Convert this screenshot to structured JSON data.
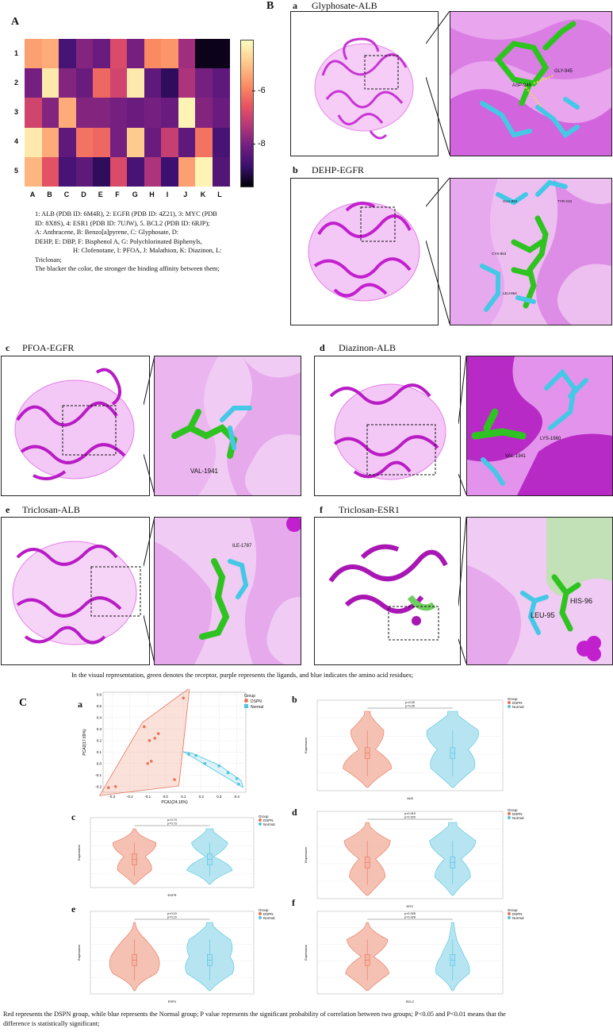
{
  "panel_A": {
    "label": "A",
    "rows": [
      "1",
      "2",
      "3",
      "4",
      "5"
    ],
    "cols": [
      "A",
      "B",
      "C",
      "D",
      "E",
      "F",
      "G",
      "H",
      "I",
      "J",
      "K",
      "L"
    ],
    "colorbar_ticks": [
      "-6",
      "-8"
    ],
    "caption_lines": [
      "1: ALB (PDB ID: 6M4R), 2: EGFR (PDB ID: 4Z21), 3: MYC (PDB",
      "ID: 8X8S), 4: ESR1 (PDB ID: 7UJW), 5. BCL2 (PDB ID: 6RJP);",
      "A: Anthracene, B:          Benzo[a]pyrene, C: Glyphosate, D:",
      "DEHP, E:      DBP, F: Bisphenol A, G: Polychlorinated Biphenyls,",
      "H: Clofenotane, I: PFOA, J: Malathion, K: Diazinon, L:",
      "Triclosan;",
      "The blacker the color, the stronger the binding affinity between them;"
    ]
  },
  "chart_data": [
    {
      "type": "heatmap",
      "rows": [
        "1",
        "2",
        "3",
        "4",
        "5"
      ],
      "cols": [
        "A",
        "B",
        "C",
        "D",
        "E",
        "F",
        "G",
        "H",
        "I",
        "J",
        "K",
        "L"
      ],
      "values": [
        [
          -6.4,
          -6.3,
          -8.4,
          -7.9,
          -8.1,
          -7.2,
          -8.0,
          -6.6,
          -6.5,
          -7.7,
          -8.9,
          -8.9
        ],
        [
          -8.0,
          -5.7,
          -7.9,
          -8.1,
          -6.9,
          -7.3,
          -5.7,
          -8.2,
          -8.6,
          -7.6,
          -8.0,
          -8.2
        ],
        [
          -7.3,
          -7.9,
          -6.3,
          -7.9,
          -7.9,
          -8.0,
          -8.1,
          -8.0,
          -8.1,
          -5.6,
          -7.9,
          -8.1
        ],
        [
          -5.7,
          -6.3,
          -8.2,
          -6.8,
          -6.9,
          -8.0,
          -6.0,
          -8.1,
          -7.4,
          -8.2,
          -6.8,
          -8.4
        ],
        [
          -6.2,
          -7.1,
          -8.4,
          -8.2,
          -8.6,
          -7.2,
          -8.4,
          -7.6,
          -8.5,
          -6.4,
          -5.6,
          -8.3
        ]
      ],
      "colorbar_ticks": [
        -6,
        -8
      ]
    },
    {
      "type": "scatter",
      "xlabel": "PCA1(24.16%)",
      "ylabel": "PCA2(17.69%)",
      "xlim": [
        -0.35,
        0.45
      ],
      "ylim": [
        -0.25,
        0.62
      ],
      "xticks": [
        -0.3,
        -0.2,
        -0.1,
        0.0,
        0.1,
        0.2,
        0.3,
        0.4
      ],
      "yticks": [
        -0.2,
        -0.1,
        0.0,
        0.1,
        0.2,
        0.3,
        0.4,
        0.5,
        0.6
      ],
      "series": [
        {
          "name": "DSPN",
          "color": "#e8735a",
          "x": [
            -0.32,
            -0.28,
            -0.12,
            -0.06,
            -0.09,
            -0.1,
            -0.08,
            -0.04,
            0.05,
            0.1
          ],
          "y": [
            -0.21,
            -0.2,
            0.32,
            0.22,
            0.2,
            0.0,
            0.02,
            0.26,
            -0.14,
            0.57
          ]
        },
        {
          "name": "Normal",
          "color": "#4fc3e0",
          "x": [
            0.13,
            0.17,
            0.22,
            0.3,
            0.35,
            0.4,
            0.41
          ],
          "y": [
            0.08,
            0.07,
            0.0,
            -0.02,
            -0.08,
            -0.13,
            -0.18
          ]
        }
      ]
    }
  ],
  "panel_B": {
    "label": "B",
    "a_label": "a",
    "a_title": "Glyphosate-ALB",
    "a_residues": [
      "ASP-946",
      "GLY-945"
    ],
    "b_label": "b",
    "b_title": "DEHP-EGFR",
    "b_residues": [
      "GLU-852",
      "TYR-210",
      "CYS-863",
      "LEU-864"
    ]
  },
  "panel_mid": {
    "c_label": "c",
    "c_title": "PFOA-EGFR",
    "c_residues": [
      "VAL-1941"
    ],
    "d_label": "d",
    "d_title": "Diazinon-ALB",
    "d_residues": [
      "LYS-1960",
      "VAL-1941"
    ],
    "e_label": "e",
    "e_title": "Triclosan-ALB",
    "e_residues": [
      "ILE-1787"
    ],
    "f_label": "f",
    "f_title": "Triclosan-ESR1",
    "f_residues": [
      "HIS-96",
      "LEU-95"
    ],
    "caption": "In the visual representation, green denotes the receptor, purple represents the ligands, and blue indicates the amino acid residues;"
  },
  "panel_C": {
    "label": "C",
    "legend_title": "Group",
    "legend_dspn": "DSPN",
    "legend_normal": "Normal",
    "colors": {
      "dspn": "#e8735a",
      "normal": "#4fc3e0",
      "dspn_fill": "#f3b6a6",
      "normal_fill": "#a9e0ef"
    },
    "plots": [
      {
        "letter": "a"
      },
      {
        "letter": "b",
        "gene": "ALB",
        "p1": "p=0.05",
        "p2": "p=0.05",
        "ylabel": "Expression"
      },
      {
        "letter": "c",
        "gene": "EGFR",
        "p1": "p=0.74",
        "p2": "p=0.73",
        "ylabel": "Expression"
      },
      {
        "letter": "d",
        "gene": "MYC",
        "p1": "p=0.019",
        "p2": "p=0.020",
        "ylabel": "Expression"
      },
      {
        "letter": "e",
        "gene": "ESR1",
        "p1": "p=0.10",
        "p2": "p=0.10",
        "ylabel": "Expression"
      },
      {
        "letter": "f",
        "gene": "BCL2",
        "p1": "p=0.028",
        "p2": "p=0.028",
        "ylabel": "Expression"
      }
    ],
    "caption_lines": [
      "Red represents the DSPN group, while blue represents the Normal group; P value represents the significant probability of correlation between two groups; P<0.05 and P<0.01 means that the",
      "difference is statistically significant;"
    ]
  }
}
